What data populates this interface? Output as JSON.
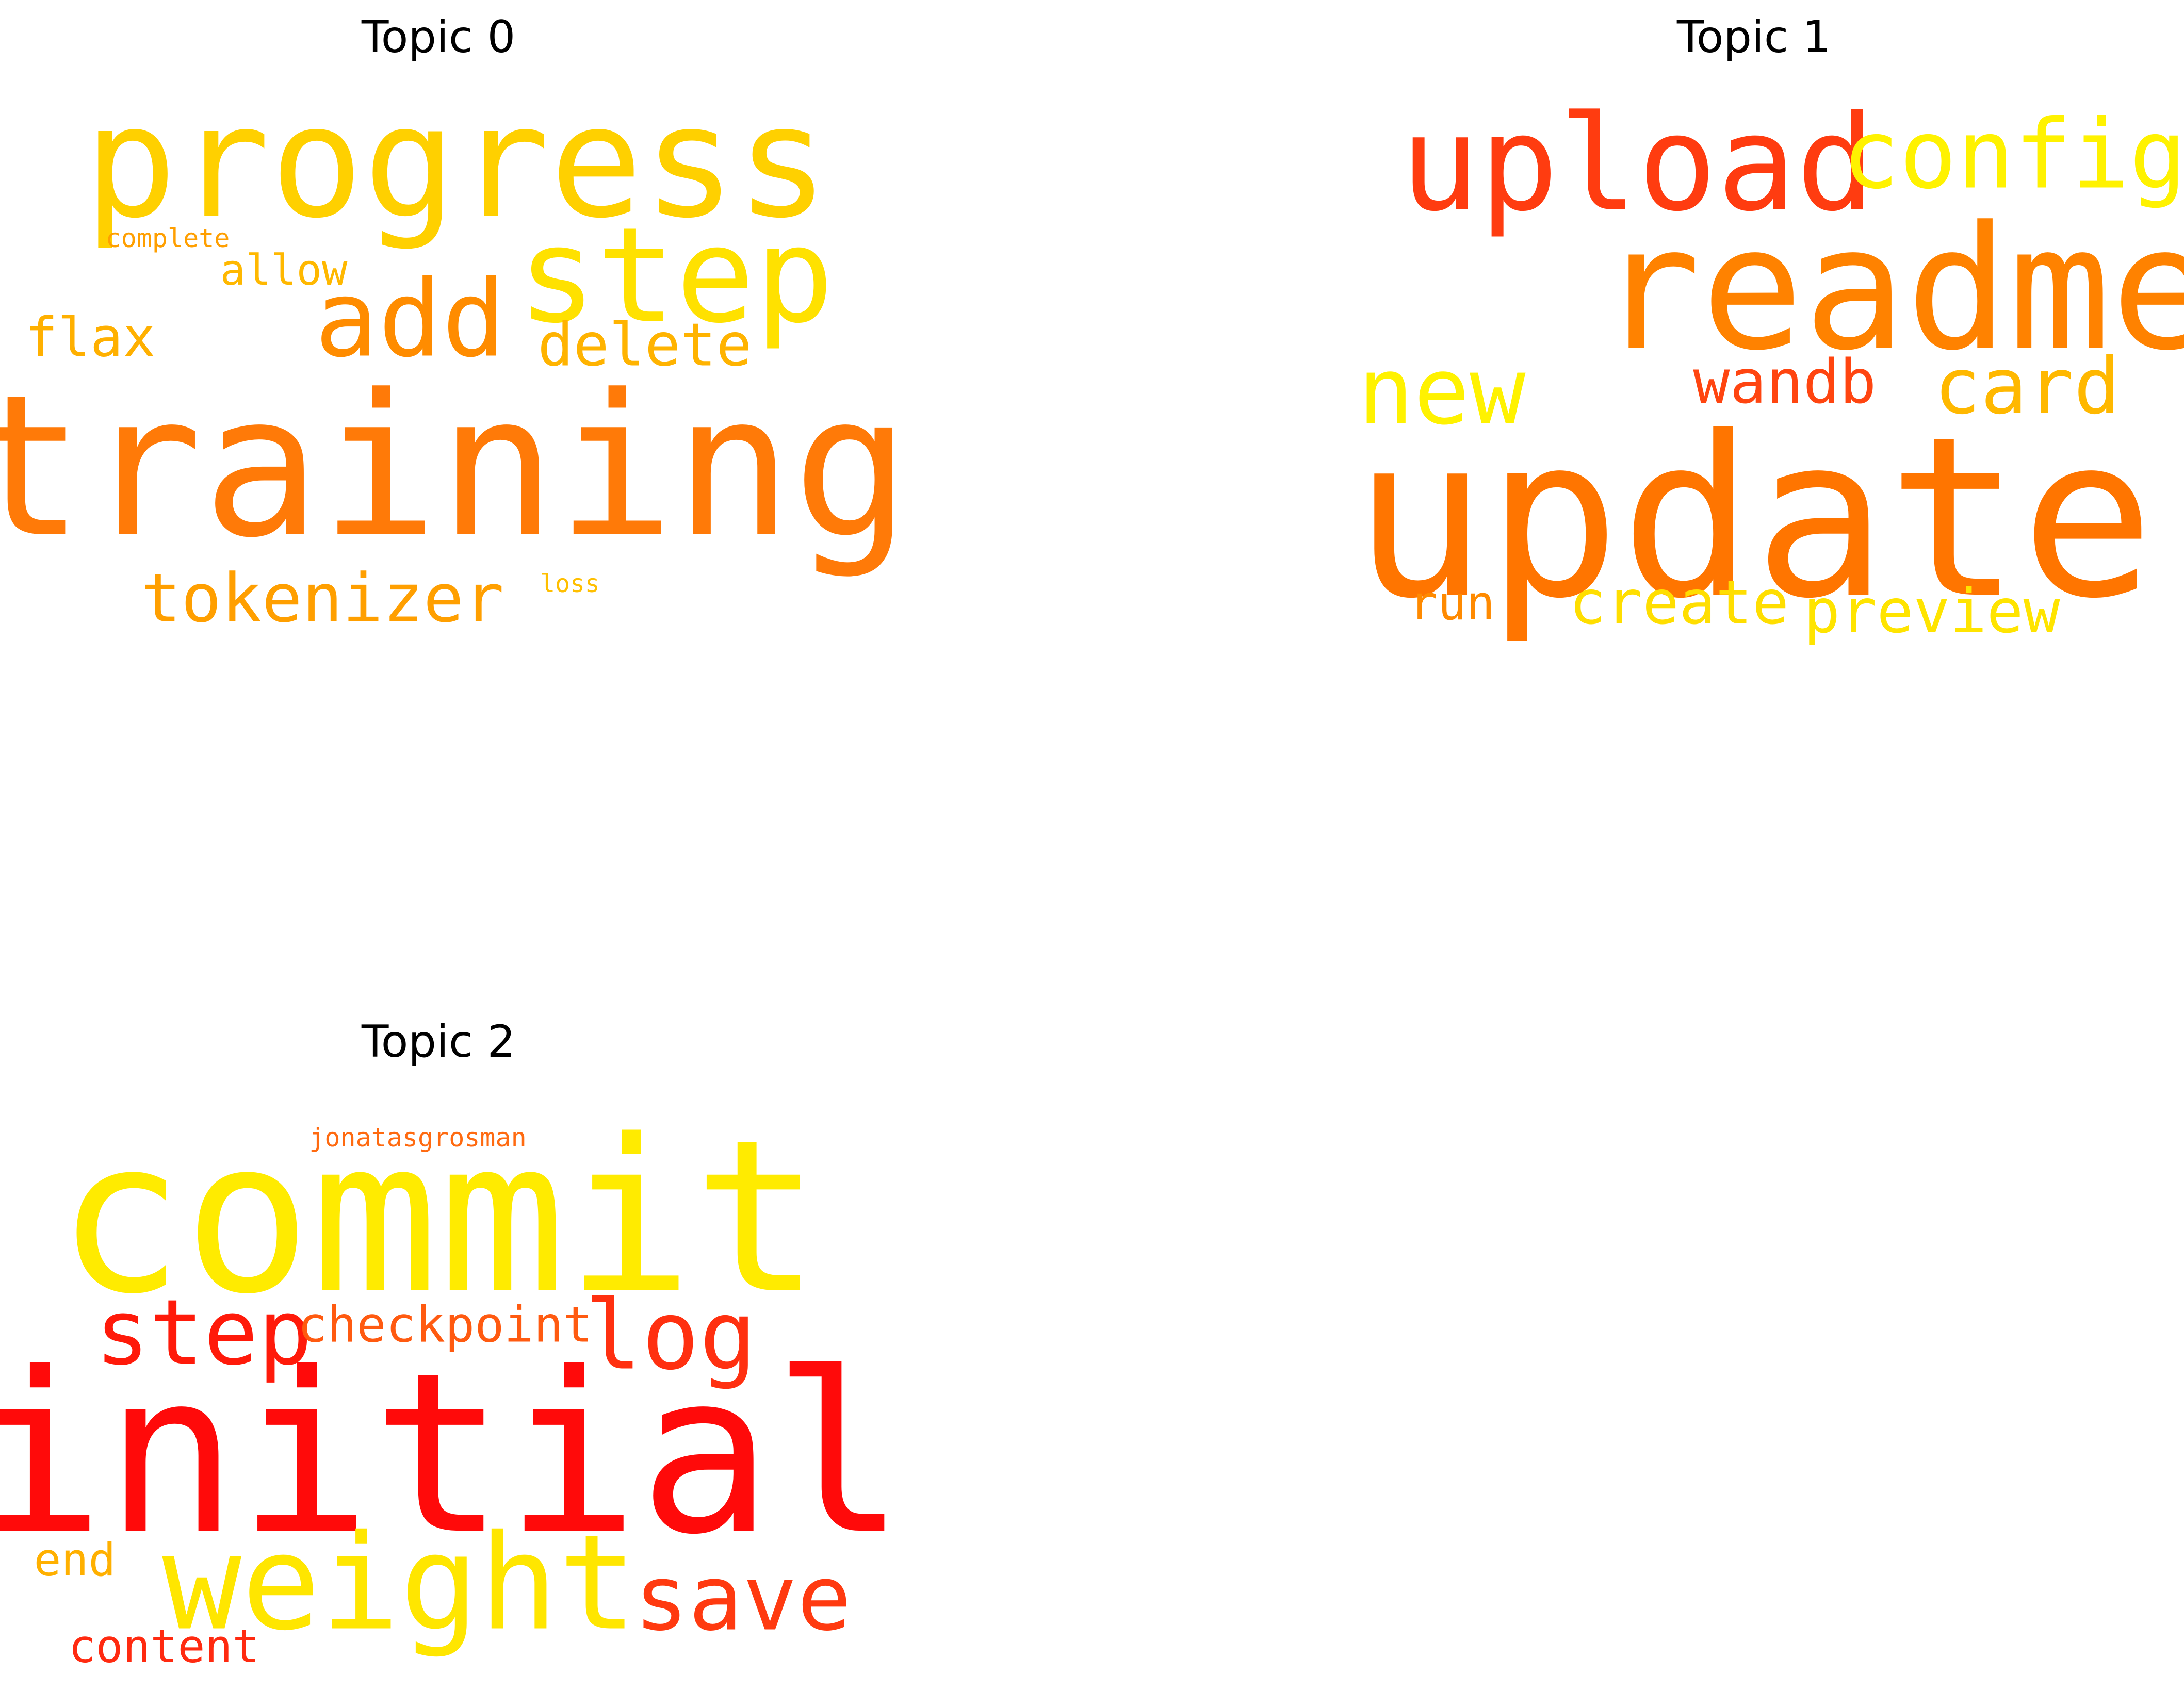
{
  "topics": [
    {
      "title": "Topic 0",
      "words": [
        {
          "text": "training",
          "color": "#ff7a08"
        },
        {
          "text": "progress",
          "color": "#ffd000"
        },
        {
          "text": "step",
          "color": "#ffe100"
        },
        {
          "text": "add",
          "color": "#ff8c00"
        },
        {
          "text": "tokenizer",
          "color": "#ff9f00"
        },
        {
          "text": "delete",
          "color": "#ffb300"
        },
        {
          "text": "flax",
          "color": "#ffb000"
        },
        {
          "text": "allow",
          "color": "#ffb800"
        },
        {
          "text": "complete",
          "color": "#ff9f00"
        },
        {
          "text": "loss",
          "color": "#ffbf00"
        }
      ]
    },
    {
      "title": "Topic 1",
      "words": [
        {
          "text": "update",
          "color": "#ff7500"
        },
        {
          "text": "readme",
          "color": "#ff8200"
        },
        {
          "text": "upload",
          "color": "#ff3c10"
        },
        {
          "text": "config",
          "color": "#fff200"
        },
        {
          "text": "new",
          "color": "#fff200"
        },
        {
          "text": "card",
          "color": "#ffb800"
        },
        {
          "text": "wandb",
          "color": "#ff4510"
        },
        {
          "text": "preview",
          "color": "#ffe400"
        },
        {
          "text": "create",
          "color": "#ffde00"
        },
        {
          "text": "run",
          "color": "#ff8a00"
        }
      ]
    },
    {
      "title": "Topic 2",
      "words": [
        {
          "text": "initial",
          "color": "#ff0a0a"
        },
        {
          "text": "commit",
          "color": "#ffeb00"
        },
        {
          "text": "weight",
          "color": "#ffe600"
        },
        {
          "text": "step",
          "color": "#ff1a0a"
        },
        {
          "text": "log",
          "color": "#ff3010"
        },
        {
          "text": "save",
          "color": "#ff3a10"
        },
        {
          "text": "checkpoint",
          "color": "#ff5a10"
        },
        {
          "text": "end",
          "color": "#ffb000"
        },
        {
          "text": "content",
          "color": "#ff2a10"
        },
        {
          "text": "jonatasgrosman",
          "color": "#ff6a10"
        }
      ]
    }
  ]
}
